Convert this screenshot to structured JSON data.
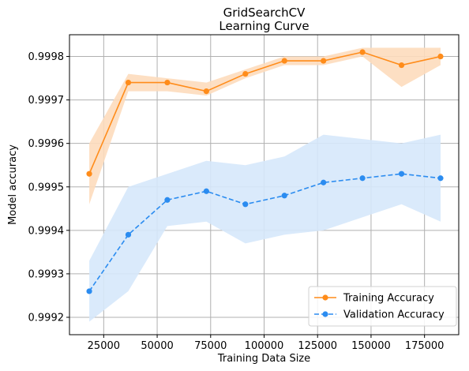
{
  "chart_data": {
    "type": "line",
    "title": "GridSearchCV",
    "subtitle": "Learning Curve",
    "xlabel": "Training Data Size",
    "ylabel": "Model accuracy",
    "xlim": [
      9000,
      191000
    ],
    "ylim": [
      0.99916,
      0.99985
    ],
    "x_ticks": [
      25000,
      50000,
      75000,
      100000,
      125000,
      150000,
      175000
    ],
    "x_tick_labels": [
      "25000",
      "50000",
      "75000",
      "100000",
      "125000",
      "150000",
      "175000"
    ],
    "y_ticks": [
      0.9992,
      0.9993,
      0.9994,
      0.9995,
      0.9996,
      0.9997,
      0.9998
    ],
    "y_tick_labels": [
      "0.9992",
      "0.9993",
      "0.9994",
      "0.9995",
      "0.9996",
      "0.9997",
      "0.9998"
    ],
    "grid": true,
    "legend_position": "lower-right",
    "x": [
      18250,
      36500,
      54750,
      73000,
      91250,
      109500,
      127750,
      146000,
      164250,
      182500
    ],
    "series": [
      {
        "name": "Training Accuracy",
        "color": "#ff8c1a",
        "band_color": "#fddcbc",
        "line_style": "solid",
        "values": [
          0.99953,
          0.99974,
          0.99974,
          0.99972,
          0.99976,
          0.99979,
          0.99979,
          0.99981,
          0.99978,
          0.9998
        ],
        "lower": [
          0.99946,
          0.99972,
          0.99972,
          0.99971,
          0.99975,
          0.99978,
          0.99978,
          0.9998,
          0.99973,
          0.99978
        ],
        "upper": [
          0.9996,
          0.99976,
          0.99975,
          0.99974,
          0.99977,
          0.9998,
          0.9998,
          0.99982,
          0.99982,
          0.99982
        ]
      },
      {
        "name": "Validation Accuracy",
        "color": "#2b8cf0",
        "band_color": "#d6e8fb",
        "line_style": "dashed",
        "values": [
          0.99926,
          0.99939,
          0.99947,
          0.99949,
          0.99946,
          0.99948,
          0.99951,
          0.99952,
          0.99953,
          0.99952
        ],
        "lower": [
          0.99919,
          0.99926,
          0.99941,
          0.99942,
          0.99937,
          0.99939,
          0.9994,
          0.99943,
          0.99946,
          0.99942
        ],
        "upper": [
          0.99933,
          0.9995,
          0.99953,
          0.99956,
          0.99955,
          0.99957,
          0.99962,
          0.99961,
          0.9996,
          0.99962
        ]
      }
    ]
  }
}
